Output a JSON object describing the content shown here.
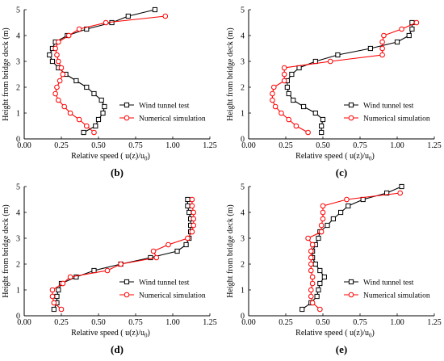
{
  "colors": {
    "wind_tunnel": "#000000",
    "numerical": "#ff0000"
  },
  "chart_data": [
    {
      "type": "line",
      "label": "(b)",
      "xlabel": "Relative speed ( u(z)/u",
      "xlabel_sub": "0",
      "xlabel_end": ")",
      "ylabel": "Height from bridge deck (m)",
      "xlim": [
        0,
        1.25
      ],
      "ylim": [
        0,
        5
      ],
      "xticks": [
        "0.00",
        "0.25",
        "0.50",
        "0.75",
        "1.00",
        "1.25"
      ],
      "yticks": [
        "0",
        "1",
        "2",
        "3",
        "4",
        "5"
      ],
      "legend_position": "lower-right",
      "series": [
        {
          "name": "Wind tunnel test",
          "color": "#000000",
          "marker": "square",
          "x": [
            0.4,
            0.48,
            0.5,
            0.53,
            0.54,
            0.52,
            0.47,
            0.42,
            0.35,
            0.28,
            0.23,
            0.19,
            0.17,
            0.19,
            0.21,
            0.29,
            0.42,
            0.59,
            0.7,
            0.88
          ],
          "y": [
            0.25,
            0.5,
            0.75,
            1.0,
            1.25,
            1.5,
            1.75,
            2.0,
            2.25,
            2.5,
            2.75,
            3.0,
            3.25,
            3.5,
            3.75,
            4.0,
            4.25,
            4.5,
            4.75,
            5.0
          ]
        },
        {
          "name": "Numerical simulation",
          "color": "#ff0000",
          "marker": "circle",
          "x": [
            0.47,
            0.42,
            0.37,
            0.31,
            0.27,
            0.23,
            0.21,
            0.22,
            0.24,
            0.26,
            0.25,
            0.23,
            0.22,
            0.21,
            0.23,
            0.3,
            0.37,
            0.55,
            0.95
          ],
          "y": [
            0.25,
            0.5,
            0.75,
            1.0,
            1.25,
            1.5,
            1.75,
            2.0,
            2.25,
            2.5,
            2.75,
            3.0,
            3.25,
            3.5,
            3.75,
            4.0,
            4.25,
            4.5,
            4.75
          ]
        }
      ],
      "legend": [
        "Wind tunnel test",
        "Numerical simulation"
      ]
    },
    {
      "type": "line",
      "label": "(c)",
      "xlabel": "Relative speed ( u(z)/u",
      "xlabel_sub": "0",
      "xlabel_end": ")",
      "ylabel": "Height from bridge deck (m)",
      "xlim": [
        0,
        1.25
      ],
      "ylim": [
        0,
        5
      ],
      "xticks": [
        "0.00",
        "0.25",
        "0.50",
        "0.75",
        "1.00",
        "1.25"
      ],
      "yticks": [
        "0",
        "1",
        "2",
        "3",
        "4",
        "5"
      ],
      "legend_position": "lower-right",
      "series": [
        {
          "name": "Wind tunnel test",
          "color": "#000000",
          "marker": "square",
          "x": [
            0.49,
            0.49,
            0.5,
            0.45,
            0.37,
            0.3,
            0.27,
            0.26,
            0.26,
            0.29,
            0.34,
            0.45,
            0.6,
            0.82,
            1.0,
            1.08,
            1.1,
            1.1
          ],
          "y": [
            0.25,
            0.5,
            0.75,
            1.0,
            1.25,
            1.5,
            1.75,
            2.0,
            2.25,
            2.5,
            2.75,
            3.0,
            3.25,
            3.5,
            3.75,
            4.0,
            4.25,
            4.5
          ]
        },
        {
          "name": "Numerical simulation",
          "color": "#ff0000",
          "marker": "circle",
          "x": [
            0.4,
            0.32,
            0.27,
            0.22,
            0.18,
            0.16,
            0.16,
            0.17,
            0.24,
            0.24,
            0.24,
            0.55,
            0.9,
            0.9,
            0.9,
            0.91,
            1.03,
            1.13
          ],
          "y": [
            0.25,
            0.5,
            0.75,
            1.0,
            1.25,
            1.5,
            1.75,
            2.0,
            2.25,
            2.5,
            2.75,
            3.0,
            3.25,
            3.5,
            3.75,
            4.0,
            4.25,
            4.5
          ]
        }
      ],
      "legend": [
        "Wind tunnel test",
        "Numerical simulation"
      ]
    },
    {
      "type": "line",
      "label": "(d)",
      "xlabel": "Relative speed ( u(z)/u",
      "xlabel_sub": "0",
      "xlabel_end": ")",
      "ylabel": "Height from bridge deck (m)",
      "xlim": [
        0,
        1.25
      ],
      "ylim": [
        0,
        5
      ],
      "xticks": [
        "0.00",
        "0.25",
        "0.50",
        "0.75",
        "1.00",
        "1.25"
      ],
      "yticks": [
        "0",
        "1",
        "2",
        "3",
        "4",
        "5"
      ],
      "legend_position": "lower-right",
      "series": [
        {
          "name": "Wind tunnel test",
          "color": "#000000",
          "marker": "square",
          "x": [
            0.2,
            0.22,
            0.22,
            0.23,
            0.25,
            0.35,
            0.47,
            0.65,
            0.85,
            1.03,
            1.09,
            1.11,
            1.12,
            1.12,
            1.12,
            1.11,
            1.1,
            1.1
          ],
          "y": [
            0.25,
            0.5,
            0.75,
            1.0,
            1.25,
            1.5,
            1.75,
            2.0,
            2.25,
            2.5,
            2.75,
            3.0,
            3.25,
            3.5,
            3.75,
            4.0,
            4.25,
            4.5
          ]
        },
        {
          "name": "Numerical simulation",
          "color": "#ff0000",
          "marker": "circle",
          "x": [
            0.25,
            0.2,
            0.19,
            0.19,
            0.26,
            0.31,
            0.56,
            0.65,
            0.89,
            0.87,
            0.97,
            1.1,
            1.13,
            1.14,
            1.14,
            1.14,
            1.13,
            1.13
          ],
          "y": [
            0.25,
            0.5,
            0.75,
            1.0,
            1.25,
            1.5,
            1.75,
            2.0,
            2.25,
            2.5,
            2.75,
            3.0,
            3.25,
            3.5,
            3.75,
            4.0,
            4.25,
            4.5
          ]
        }
      ],
      "legend": [
        "Wind tunnel test",
        "Numerical simulation"
      ]
    },
    {
      "type": "line",
      "label": "(e)",
      "xlabel": "Relative speed ( u(z)/u",
      "xlabel_sub": "0",
      "xlabel_end": ")",
      "ylabel": "Height from bridge deck (m)",
      "xlim": [
        0,
        1.25
      ],
      "ylim": [
        0,
        5
      ],
      "xticks": [
        "0.00",
        "0.25",
        "0.50",
        "0.75",
        "1.00",
        "1.25"
      ],
      "yticks": [
        "0",
        "1",
        "2",
        "3",
        "4",
        "5"
      ],
      "legend_position": "lower-right",
      "series": [
        {
          "name": "Wind tunnel test",
          "color": "#000000",
          "marker": "square",
          "x": [
            0.36,
            0.42,
            0.46,
            0.47,
            0.48,
            0.51,
            0.48,
            0.45,
            0.43,
            0.43,
            0.45,
            0.47,
            0.48,
            0.53,
            0.57,
            0.62,
            0.67,
            0.77,
            0.93,
            1.03
          ],
          "y": [
            0.25,
            0.5,
            0.75,
            1.0,
            1.25,
            1.5,
            1.75,
            2.0,
            2.25,
            2.5,
            2.75,
            3.0,
            3.25,
            3.5,
            3.75,
            4.0,
            4.25,
            4.5,
            4.75,
            5.0
          ]
        },
        {
          "name": "Numerical simulation",
          "color": "#ff0000",
          "marker": "circle",
          "x": [
            0.48,
            0.43,
            0.42,
            0.42,
            0.43,
            0.43,
            0.42,
            0.42,
            0.42,
            0.42,
            0.43,
            0.4,
            0.49,
            0.49,
            0.5,
            0.5,
            0.5,
            0.66,
            1.02
          ],
          "y": [
            0.25,
            0.5,
            0.75,
            1.0,
            1.25,
            1.5,
            1.75,
            2.0,
            2.25,
            2.5,
            2.75,
            3.0,
            3.25,
            3.5,
            3.75,
            4.0,
            4.25,
            4.5,
            4.75
          ]
        }
      ],
      "legend": [
        "Wind tunnel test",
        "Numerical simulation"
      ]
    }
  ]
}
